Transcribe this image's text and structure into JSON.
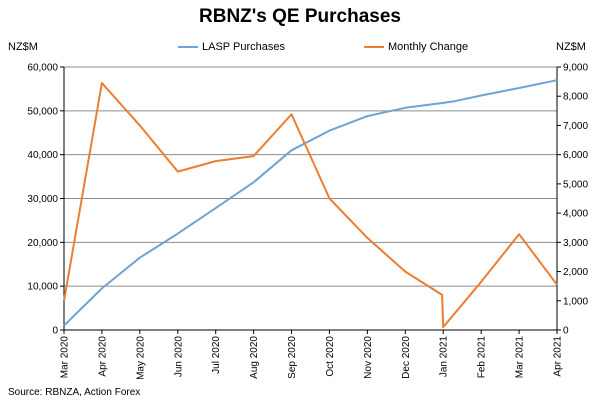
{
  "chart_data": {
    "type": "line",
    "title": "RBNZ's QE Purchases",
    "y_left_unit": "NZ$M",
    "y_right_unit": "NZ$M",
    "source": "Source: RBNZA, Action Forex",
    "categories": [
      "Mar 2020",
      "Apr 2020",
      "May 2020",
      "Jun 2020",
      "Jul 2020",
      "Aug 2020",
      "Sep 2020",
      "Oct 2020",
      "Nov 2020",
      "Dec 2020",
      "Jan 2021",
      "Feb 2021",
      "Mar 2021",
      "Apr 2021"
    ],
    "y_left": {
      "min": 0,
      "max": 60000,
      "ticks": [
        "0",
        "10,000",
        "20,000",
        "30,000",
        "40,000",
        "50,000",
        "60,000"
      ]
    },
    "y_right": {
      "min": 0,
      "max": 9000,
      "ticks": [
        "0",
        "1,000",
        "2,000",
        "3,000",
        "4,000",
        "5,000",
        "6,000",
        "7,000",
        "8,000",
        "9,000"
      ]
    },
    "grid": true,
    "legend_position": "top",
    "series": [
      {
        "name": "LASP Purchases",
        "axis": "left",
        "color": "#6fa3d4",
        "x": [
          0,
          1,
          2,
          3,
          4,
          5,
          6,
          7,
          8,
          9,
          10,
          10.3,
          11,
          12,
          13
        ],
        "values": [
          1000,
          9500,
          16500,
          22000,
          27800,
          33700,
          41000,
          45500,
          48800,
          50700,
          51800,
          52200,
          53500,
          55200,
          57000
        ]
      },
      {
        "name": "Monthly Change",
        "axis": "right",
        "color": "#ed7d31",
        "x": [
          0,
          1,
          2,
          3,
          4,
          5,
          6,
          7,
          8,
          9,
          9.97,
          10,
          11,
          12,
          13
        ],
        "values": [
          1000,
          8450,
          7000,
          5420,
          5780,
          5950,
          7380,
          4500,
          3150,
          2000,
          1200,
          100,
          1650,
          3280,
          1550
        ]
      }
    ]
  }
}
